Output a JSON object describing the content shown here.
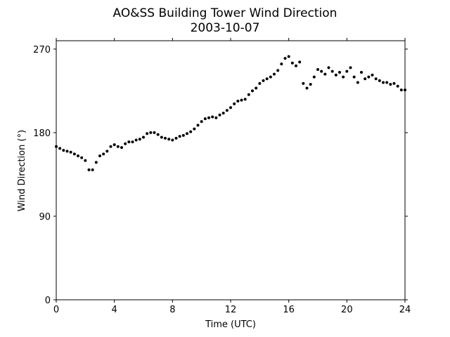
{
  "chart_data": {
    "type": "scatter",
    "title": "AO&SS Building Tower Wind Direction",
    "subtitle": "2003-10-07",
    "x_label": "Time (UTC)",
    "y_label": "Wind Direction (°)",
    "color": "#000000",
    "xlim": [
      0,
      24
    ],
    "xticks": [
      0,
      4,
      8,
      12,
      16,
      20,
      24
    ],
    "ylim": [
      0,
      279
    ],
    "yticks": [
      0,
      90,
      180,
      270
    ],
    "x": [
      0,
      0.25,
      0.5,
      0.75,
      1,
      1.25,
      1.5,
      1.75,
      2,
      2.25,
      2.5,
      2.75,
      3,
      3.25,
      3.5,
      3.75,
      4,
      4.25,
      4.5,
      4.75,
      5,
      5.25,
      5.5,
      5.75,
      6,
      6.25,
      6.5,
      6.75,
      7,
      7.25,
      7.5,
      7.75,
      8,
      8.25,
      8.5,
      8.75,
      9,
      9.25,
      9.5,
      9.75,
      10,
      10.25,
      10.5,
      10.75,
      11,
      11.25,
      11.5,
      11.75,
      12,
      12.25,
      12.5,
      12.75,
      13,
      13.25,
      13.5,
      13.75,
      14,
      14.25,
      14.5,
      14.75,
      15,
      15.25,
      15.5,
      15.75,
      16,
      16.25,
      16.5,
      16.75,
      17,
      17.25,
      17.5,
      17.75,
      18,
      18.25,
      18.5,
      18.75,
      19,
      19.25,
      19.5,
      19.75,
      20,
      20.25,
      20.5,
      20.75,
      21,
      21.25,
      21.5,
      21.75,
      22,
      22.25,
      22.5,
      22.75,
      23,
      23.25,
      23.5,
      23.75,
      24
    ],
    "values": [
      165,
      163,
      161,
      160,
      159,
      157,
      155,
      153,
      150,
      140,
      140,
      148,
      155,
      157,
      160,
      165,
      167,
      165,
      164,
      168,
      170,
      170,
      172,
      173,
      175,
      179,
      180,
      180,
      178,
      175,
      174,
      173,
      172,
      174,
      176,
      177,
      179,
      181,
      184,
      188,
      192,
      195,
      196,
      197,
      196,
      199,
      201,
      204,
      207,
      211,
      214,
      215,
      216,
      221,
      225,
      228,
      233,
      236,
      238,
      240,
      243,
      247,
      254,
      260,
      262,
      255,
      252,
      256,
      233,
      228,
      232,
      240,
      248,
      246,
      243,
      250,
      246,
      242,
      245,
      240,
      246,
      250,
      240,
      234,
      245,
      238,
      240,
      242,
      238,
      236,
      234,
      234,
      232,
      233,
      230,
      226,
      226
    ]
  }
}
